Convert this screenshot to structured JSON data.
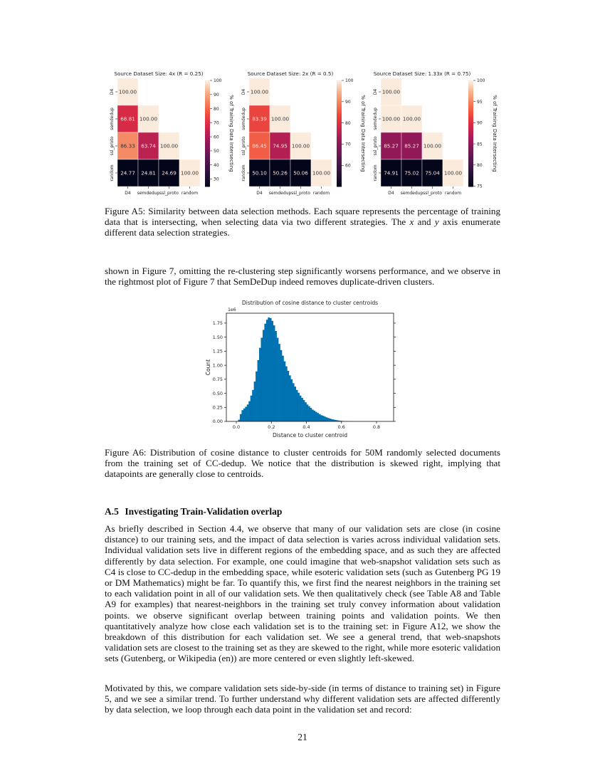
{
  "figure_a5": {
    "caption": "Figure A5: Similarity between data selection methods. Each square represents the percentage of training data that is intersecting, when selecting data via two different strategies. The x and y axis enumerate different data selection strategies."
  },
  "continuation_text": "shown in Figure 7, omitting the re-clustering step significantly worsens performance, and we observe in the rightmost plot of Figure 7 that SemDeDup indeed removes duplicate-driven clusters.",
  "figure_a6": {
    "caption": "Figure A6: Distribution of cosine distance to cluster centroids for  50M randomly selected documents from the training set of CC-dedup. We notice that the distribution is skewed right, implying that datapoints are generally close to centroids."
  },
  "section": {
    "number": "A.5",
    "title": "Investigating Train-Validation overlap",
    "paragraphs": [
      "As briefly described in Section 4.4, we observe that many of our validation sets are close (in cosine distance) to our training sets, and the impact of data selection is varies across individual validation sets. Individual validation sets live in different regions of the embedding space, and as such they are affected differently by data selection. For example, one could imagine that web-snapshot validation sets such as C4 is close to CC-dedup in the embedding space, while esoteric validation sets (such as Gutenberg PG 19 or DM Mathematics) might be far. To quantify this, we first find the nearest neighbors in the training set to each validation point in all of our validation sets. We then qualitatively check (see Table A8 and Table A9 for examples) that nearest-neighbors in the training set truly convey information about validation points. we observe significant overlap between training points and validation points. We then quantitatively analyze how close each validation set is to the training set: in Figure A12, we show the breakdown of this distribution for each validation set. We see a general trend, that web-snapshots validation sets are closest to the training set as they are skewed to the right, while more esoteric validation sets (Gutenberg, or Wikipedia (en)) are more centered or even slightly left-skewed.",
      "Motivated by this, we compare validation sets side-by-side (in terms of distance to training set) in Figure 5, and we see a similar trend. To further understand why different validation sets are affected differently by data selection, we loop through each data point in the validation set and record:"
    ]
  },
  "page_number": "21",
  "chart_data": [
    {
      "type": "heatmap",
      "title": "Source Dataset Size: 4x (R = 0.25)",
      "x_categories": [
        "D4",
        "semdedup",
        "ssl_proto",
        "random"
      ],
      "y_categories": [
        "D4",
        "semdedup",
        "ssl_proto",
        "random"
      ],
      "values": [
        [
          100.0,
          null,
          null,
          null
        ],
        [
          68.81,
          100.0,
          null,
          null
        ],
        [
          86.33,
          63.74,
          100.0,
          null
        ],
        [
          24.77,
          24.81,
          24.69,
          100.0
        ]
      ],
      "colormap": "rocket",
      "colorbar_label": "% of Training Data Intersecting",
      "colorbar_range": [
        24.69,
        100
      ],
      "colorbar_ticks": [
        "30",
        "40",
        "50",
        "60",
        "70",
        "80",
        "90",
        "100"
      ]
    },
    {
      "type": "heatmap",
      "title": "Source Dataset Size: 2x (R = 0.5)",
      "x_categories": [
        "D4",
        "semdedup",
        "ssl_proto",
        "random"
      ],
      "y_categories": [
        "D4",
        "semdedup",
        "ssl_proto",
        "random"
      ],
      "values": [
        [
          100.0,
          null,
          null,
          null
        ],
        [
          83.39,
          100.0,
          null,
          null
        ],
        [
          86.45,
          74.95,
          100.0,
          null
        ],
        [
          50.1,
          50.26,
          50.06,
          100.0
        ]
      ],
      "colormap": "rocket",
      "colorbar_label": "% of Training Data Intersecting",
      "colorbar_range": [
        50.06,
        100
      ],
      "colorbar_ticks": [
        "60",
        "70",
        "80",
        "90",
        "100"
      ]
    },
    {
      "type": "heatmap",
      "title": "Source Dataset Size: 1.33x (R = 0.75)",
      "x_categories": [
        "D4",
        "semdedup",
        "ssl_proto",
        "random"
      ],
      "y_categories": [
        "D4",
        "semdedup",
        "ssl_proto",
        "random"
      ],
      "values": [
        [
          100.0,
          null,
          null,
          null
        ],
        [
          100.0,
          100.0,
          null,
          null
        ],
        [
          85.27,
          85.27,
          100.0,
          null
        ],
        [
          74.91,
          75.02,
          75.04,
          100.0
        ]
      ],
      "colormap": "rocket",
      "colorbar_label": "% of Training Data Intersecting",
      "colorbar_range": [
        74.91,
        100
      ],
      "colorbar_ticks": [
        "75",
        "80",
        "85",
        "90",
        "95",
        "100"
      ]
    },
    {
      "type": "bar",
      "subtype": "histogram",
      "title": "Distribution of cosine distance to cluster centroids",
      "xlabel": "Distance to cluster centroid",
      "ylabel": "Count",
      "y_scale_label": "1e6",
      "xlim": [
        -0.03,
        0.9
      ],
      "ylim": [
        0,
        1.93
      ],
      "x_ticks": [
        "0.0",
        "0.2",
        "0.4",
        "0.6",
        "0.8"
      ],
      "y_ticks": [
        "0.00",
        "0.25",
        "0.50",
        "0.75",
        "1.00",
        "1.25",
        "1.50",
        "1.75"
      ],
      "color": "#0072b2",
      "bin_width": 0.01,
      "bin_starts": [
        0.01,
        0.02,
        0.03,
        0.04,
        0.05,
        0.06,
        0.07,
        0.08,
        0.09,
        0.1,
        0.11,
        0.12,
        0.13,
        0.14,
        0.15,
        0.16,
        0.17,
        0.18,
        0.19,
        0.2,
        0.21,
        0.22,
        0.23,
        0.24,
        0.25,
        0.26,
        0.27,
        0.28,
        0.29,
        0.3,
        0.31,
        0.32,
        0.33,
        0.34,
        0.35,
        0.36,
        0.37,
        0.38,
        0.39,
        0.4,
        0.41,
        0.42,
        0.43,
        0.44,
        0.45,
        0.46,
        0.47,
        0.48,
        0.49,
        0.5,
        0.51,
        0.52,
        0.53,
        0.54,
        0.55,
        0.56,
        0.57,
        0.58,
        0.59,
        0.6,
        0.61,
        0.62,
        0.63,
        0.64,
        0.65,
        0.66,
        0.67,
        0.68,
        0.69
      ],
      "counts_1e6": [
        0.03,
        0.13,
        0.2,
        0.23,
        0.26,
        0.3,
        0.36,
        0.46,
        0.56,
        0.71,
        0.89,
        1.09,
        1.31,
        1.49,
        1.63,
        1.74,
        1.81,
        1.85,
        1.84,
        1.79,
        1.71,
        1.61,
        1.49,
        1.38,
        1.27,
        1.17,
        1.07,
        0.98,
        0.9,
        0.82,
        0.75,
        0.68,
        0.62,
        0.56,
        0.51,
        0.46,
        0.42,
        0.38,
        0.34,
        0.3,
        0.27,
        0.24,
        0.21,
        0.19,
        0.17,
        0.15,
        0.13,
        0.11,
        0.1,
        0.085,
        0.072,
        0.06,
        0.05,
        0.04,
        0.033,
        0.026,
        0.02,
        0.015,
        0.011,
        0.008,
        0.006,
        0.004,
        0.003,
        0.002,
        0.0015,
        0.001,
        0.0007,
        0.0004,
        0.0002
      ]
    }
  ]
}
